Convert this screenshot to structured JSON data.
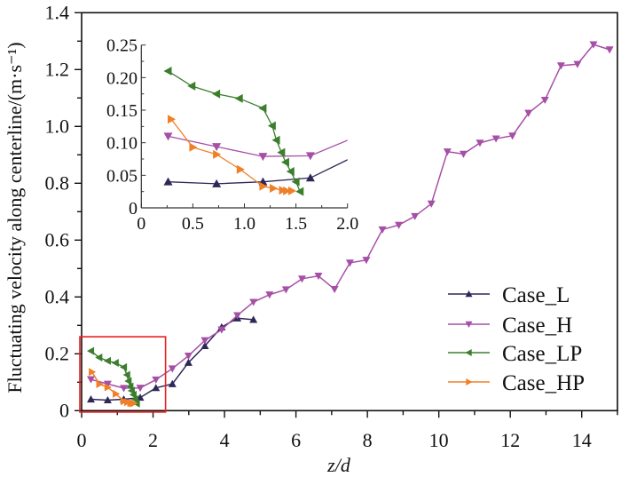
{
  "chart_data": [
    {
      "type": "line",
      "xlabel": "z/d",
      "ylabel": "Fluctuating velocity along centerline/(m·s⁻¹)",
      "xlim": [
        0,
        15
      ],
      "ylim": [
        0,
        1.4
      ],
      "xticks": [
        "0",
        "2",
        "4",
        "6",
        "8",
        "10",
        "12",
        "14"
      ],
      "yticks": [
        "0",
        "0.2",
        "0.4",
        "0.6",
        "0.8",
        "1.0",
        "1.2",
        "1.4"
      ],
      "legend_position": "bottom-right",
      "grid": false,
      "highlight_box": {
        "x": [
          -0.05,
          2.35
        ],
        "y": [
          -0.005,
          0.26
        ],
        "color": "#e8201f"
      },
      "series": [
        {
          "name": "Case_L",
          "marker": "triangle-up",
          "color": "#2f2758",
          "x": [
            0.26,
            0.73,
            1.18,
            1.64,
            2.08,
            2.54,
            2.99,
            3.45,
            3.92,
            4.36,
            4.81
          ],
          "y": [
            0.04,
            0.037,
            0.04,
            0.046,
            0.08,
            0.094,
            0.169,
            0.228,
            0.294,
            0.325,
            0.32
          ]
        },
        {
          "name": "Case_H",
          "marker": "triangle-down",
          "color": "#a64fa6",
          "x": [
            0.26,
            0.73,
            1.18,
            1.64,
            2.08,
            2.54,
            2.99,
            3.45,
            3.92,
            4.36,
            4.81,
            5.26,
            5.72,
            6.17,
            6.63,
            7.08,
            7.51,
            7.97,
            8.42,
            8.88,
            9.33,
            9.79,
            10.24,
            10.69,
            11.15,
            11.6,
            12.06,
            12.51,
            12.97,
            13.42,
            13.88,
            14.33,
            14.78
          ],
          "y": [
            0.11,
            0.094,
            0.079,
            0.08,
            0.109,
            0.148,
            0.193,
            0.247,
            0.285,
            0.335,
            0.382,
            0.408,
            0.426,
            0.464,
            0.474,
            0.427,
            0.52,
            0.53,
            0.637,
            0.653,
            0.684,
            0.728,
            0.911,
            0.903,
            0.942,
            0.957,
            0.967,
            1.047,
            1.093,
            1.214,
            1.219,
            1.288,
            1.27
          ]
        },
        {
          "name": "Case_LP",
          "marker": "triangle-left",
          "color": "#3b7f2d",
          "x": [
            0.26,
            0.49,
            0.73,
            0.95,
            1.18,
            1.27,
            1.31,
            1.36,
            1.4,
            1.45,
            1.5,
            1.54
          ],
          "y": [
            0.21,
            0.187,
            0.175,
            0.168,
            0.153,
            0.126,
            0.104,
            0.085,
            0.07,
            0.056,
            0.04,
            0.025
          ]
        },
        {
          "name": "Case_HP",
          "marker": "triangle-right",
          "color": "#f08028",
          "x": [
            0.29,
            0.5,
            0.73,
            0.96,
            1.18,
            1.28,
            1.37,
            1.41,
            1.46
          ],
          "y": [
            0.136,
            0.093,
            0.082,
            0.059,
            0.033,
            0.03,
            0.027,
            0.026,
            0.026
          ]
        }
      ]
    },
    {
      "type": "line",
      "role": "inset",
      "xlim": [
        0,
        2.0
      ],
      "ylim": [
        0,
        0.25
      ],
      "xticks": [
        "0",
        "0.5",
        "1.0",
        "1.5",
        "2.0"
      ],
      "yticks": [
        "0",
        "0.05",
        "0.10",
        "0.15",
        "0.20",
        "0.25"
      ],
      "series_source": "same as main chart, zoomed region"
    }
  ]
}
